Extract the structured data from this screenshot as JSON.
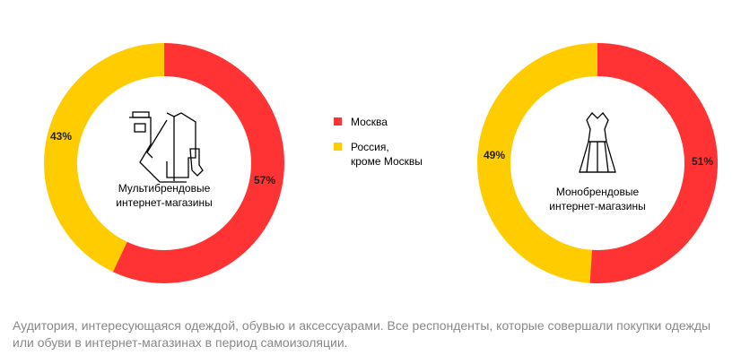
{
  "colors": {
    "moscow": "#ff3333",
    "russia": "#ffcc00"
  },
  "legend": [
    {
      "label": "Москва",
      "color": "#ff3333"
    },
    {
      "label": "Россия,",
      "label2": "кроме Москвы",
      "color": "#ffcc00"
    }
  ],
  "chart_data": [
    {
      "type": "pie",
      "title_line1": "Мультибрендовые",
      "title_line2": "интернет-магазины",
      "icon": "clothes-icon",
      "slices": [
        {
          "name": "Москва",
          "value": 57,
          "label": "57%"
        },
        {
          "name": "Россия, кроме Москвы",
          "value": 43,
          "label": "43%"
        }
      ]
    },
    {
      "type": "pie",
      "title_line1": "Монобрендовые",
      "title_line2": "интернет-магазины",
      "icon": "dress-icon",
      "slices": [
        {
          "name": "Москва",
          "value": 51,
          "label": "51%"
        },
        {
          "name": "Россия, кроме Москвы",
          "value": 49,
          "label": "49%"
        }
      ]
    }
  ],
  "footnote": "Аудитория, интересующаяся одеждой, обувью и аксессуарами. Все респонденты, которые совершали покупки одежды или обуви в интернет-магазинах в период самоизоляции."
}
